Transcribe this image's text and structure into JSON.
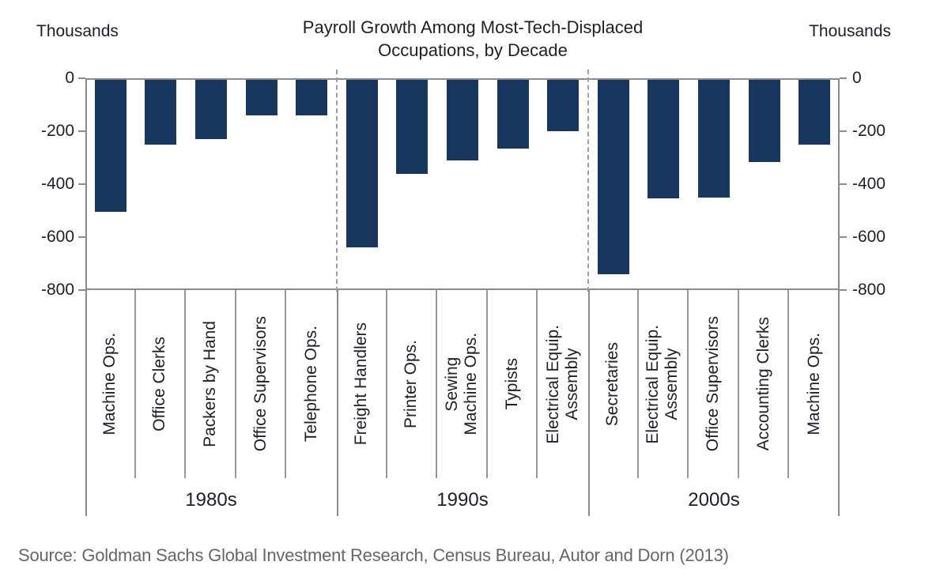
{
  "header": {
    "title": "Payroll Growth Among Most-Tech-Displaced Occupations, by Decade",
    "y_axis_unit": "Thousands"
  },
  "chart_data": {
    "type": "bar",
    "title": "Payroll Growth Among Most-Tech-Displaced Occupations, by Decade",
    "ylabel": "Thousands",
    "ylim": [
      -800,
      0
    ],
    "yticks": [
      0,
      -200,
      -400,
      -600,
      -800
    ],
    "grid": false,
    "legend": false,
    "bar_color": "#17375E",
    "axis_color": "#8c8c8c",
    "groups": [
      {
        "decade": "1980s",
        "categories": [
          "Machine Ops.",
          "Office Clerks",
          "Packers by Hand",
          "Office Supervisors",
          "Telephone Ops."
        ],
        "values": [
          -505,
          -250,
          -230,
          -140,
          -140
        ]
      },
      {
        "decade": "1990s",
        "categories": [
          "Freight Handlers",
          "Printer Ops.",
          "Sewing\nMachine Ops.",
          "Typists",
          "Electrical Equip.\nAssembly"
        ],
        "values": [
          -640,
          -360,
          -310,
          -265,
          -200
        ]
      },
      {
        "decade": "2000s",
        "categories": [
          "Secretaries",
          "Electrical Equip.\nAssembly",
          "Office Supervisors",
          "Accounting Clerks",
          "Machine Ops."
        ],
        "values": [
          -740,
          -455,
          -450,
          -315,
          -250
        ]
      }
    ]
  },
  "footer": {
    "source": "Source: Goldman Sachs Global Investment Research, Census Bureau, Autor and Dorn (2013)"
  }
}
